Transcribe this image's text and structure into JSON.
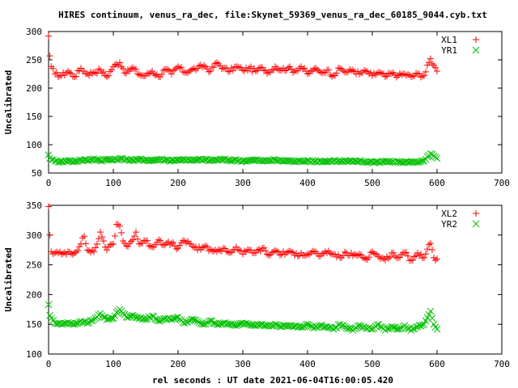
{
  "title": "HIRES continuum, venus_ra_dec, file:Skynet_59369_venus_ra_dec_60185_9044.cyb.txt",
  "xlabel": "rel seconds : UT date 2021-06-04T16:00:05.420",
  "colors": {
    "red": "#ff0000",
    "green": "#00c000",
    "axis": "#000000"
  },
  "chart_data": [
    {
      "type": "scatter",
      "xlim": [
        0,
        700
      ],
      "ylim": [
        50,
        300
      ],
      "xticks": [
        0,
        100,
        200,
        300,
        400,
        500,
        600,
        700
      ],
      "yticks": [
        50,
        100,
        150,
        200,
        250,
        300
      ],
      "ylabel": "Uncalibrated",
      "legend_position": "top-right",
      "series": [
        {
          "name": "XL1",
          "marker": "plus",
          "color": "#ff0000",
          "x": [
            0,
            2,
            4,
            10,
            20,
            30,
            40,
            50,
            60,
            70,
            80,
            90,
            100,
            110,
            120,
            130,
            140,
            150,
            160,
            170,
            180,
            190,
            200,
            210,
            220,
            230,
            240,
            250,
            260,
            270,
            280,
            290,
            300,
            310,
            320,
            330,
            340,
            350,
            360,
            370,
            380,
            390,
            400,
            410,
            420,
            430,
            440,
            450,
            460,
            470,
            480,
            490,
            500,
            510,
            520,
            530,
            540,
            550,
            560,
            570,
            580,
            590,
            595,
            600
          ],
          "y": [
            292,
            257,
            238,
            225,
            222,
            230,
            220,
            235,
            225,
            228,
            232,
            220,
            238,
            245,
            226,
            236,
            224,
            222,
            230,
            220,
            233,
            225,
            238,
            228,
            232,
            235,
            240,
            230,
            245,
            235,
            230,
            238,
            232,
            235,
            230,
            236,
            228,
            238,
            232,
            236,
            230,
            238,
            225,
            234,
            228,
            232,
            222,
            235,
            228,
            232,
            225,
            230,
            222,
            228,
            220,
            226,
            222,
            225,
            220,
            225,
            222,
            252,
            240,
            230
          ]
        },
        {
          "name": "YR1",
          "marker": "cross",
          "color": "#00c000",
          "x": [
            0,
            2,
            10,
            20,
            30,
            40,
            50,
            60,
            70,
            80,
            90,
            100,
            110,
            120,
            130,
            140,
            150,
            160,
            170,
            180,
            190,
            200,
            210,
            220,
            230,
            240,
            250,
            260,
            270,
            280,
            290,
            300,
            310,
            320,
            330,
            340,
            350,
            360,
            370,
            380,
            390,
            400,
            410,
            420,
            430,
            440,
            450,
            460,
            470,
            480,
            490,
            500,
            510,
            520,
            530,
            540,
            550,
            560,
            570,
            580,
            590,
            595,
            600
          ],
          "y": [
            82,
            76,
            71,
            70,
            72,
            70,
            73,
            72,
            75,
            72,
            74,
            73,
            75,
            74,
            72,
            74,
            73,
            72,
            74,
            73,
            72,
            73,
            74,
            72,
            73,
            74,
            72,
            73,
            74,
            72,
            73,
            71,
            72,
            73,
            71,
            72,
            73,
            71,
            72,
            70,
            71,
            72,
            70,
            71,
            70,
            72,
            70,
            71,
            70,
            71,
            69,
            70,
            69,
            71,
            69,
            70,
            69,
            70,
            69,
            71,
            84,
            80,
            76
          ]
        }
      ]
    },
    {
      "type": "scatter",
      "xlim": [
        0,
        700
      ],
      "ylim": [
        100,
        350
      ],
      "xticks": [
        0,
        100,
        200,
        300,
        400,
        500,
        600,
        700
      ],
      "yticks": [
        100,
        150,
        200,
        250,
        300,
        350
      ],
      "ylabel": "Uncalibrated",
      "legend_position": "top-right",
      "series": [
        {
          "name": "XL2",
          "marker": "plus",
          "color": "#ff0000",
          "x": [
            0,
            2,
            4,
            10,
            20,
            30,
            40,
            50,
            55,
            60,
            70,
            75,
            80,
            85,
            90,
            100,
            105,
            110,
            115,
            120,
            130,
            135,
            140,
            150,
            160,
            170,
            180,
            190,
            200,
            210,
            220,
            230,
            240,
            250,
            260,
            270,
            280,
            290,
            300,
            310,
            320,
            330,
            340,
            350,
            360,
            370,
            380,
            390,
            400,
            410,
            420,
            430,
            440,
            450,
            460,
            470,
            480,
            490,
            500,
            510,
            520,
            530,
            540,
            550,
            560,
            570,
            580,
            590,
            595,
            600
          ],
          "y": [
            348,
            300,
            272,
            270,
            268,
            272,
            270,
            285,
            298,
            275,
            272,
            285,
            305,
            290,
            275,
            285,
            318,
            315,
            290,
            282,
            292,
            305,
            285,
            290,
            280,
            292,
            284,
            286,
            278,
            290,
            285,
            275,
            280,
            276,
            272,
            278,
            270,
            280,
            268,
            275,
            270,
            278,
            266,
            274,
            268,
            272,
            266,
            270,
            268,
            272,
            265,
            270,
            268,
            262,
            270,
            265,
            268,
            260,
            272,
            264,
            258,
            270,
            262,
            270,
            258,
            270,
            262,
            286,
            262,
            260
          ]
        },
        {
          "name": "YR2",
          "marker": "cross",
          "color": "#00c000",
          "x": [
            0,
            2,
            10,
            20,
            30,
            40,
            50,
            60,
            70,
            75,
            80,
            90,
            100,
            105,
            110,
            120,
            130,
            140,
            150,
            160,
            170,
            180,
            190,
            200,
            210,
            220,
            230,
            240,
            250,
            260,
            270,
            280,
            290,
            300,
            310,
            320,
            330,
            340,
            350,
            360,
            370,
            380,
            390,
            400,
            410,
            420,
            430,
            440,
            450,
            460,
            470,
            480,
            490,
            500,
            510,
            520,
            530,
            540,
            550,
            560,
            570,
            580,
            590,
            595,
            600
          ],
          "y": [
            183,
            165,
            152,
            150,
            153,
            150,
            155,
            152,
            158,
            162,
            168,
            158,
            160,
            170,
            175,
            162,
            165,
            160,
            158,
            164,
            156,
            160,
            158,
            162,
            152,
            158,
            155,
            150,
            156,
            150,
            152,
            150,
            148,
            152,
            150,
            148,
            150,
            147,
            150,
            146,
            148,
            147,
            145,
            150,
            144,
            148,
            146,
            142,
            150,
            144,
            140,
            148,
            144,
            142,
            150,
            140,
            146,
            142,
            148,
            140,
            146,
            150,
            172,
            150,
            142
          ]
        }
      ]
    }
  ]
}
